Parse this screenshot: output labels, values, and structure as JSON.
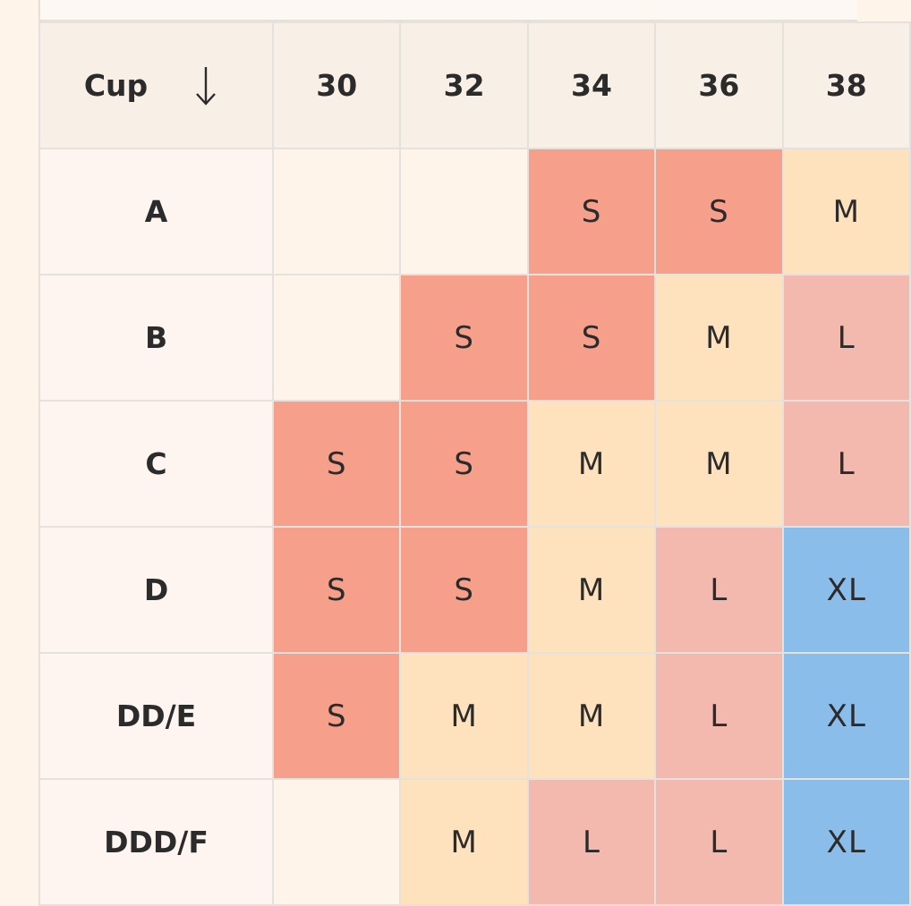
{
  "table": {
    "header": {
      "cup_label": "Cup",
      "sort_icon": "arrow-down-icon",
      "bands": [
        "30",
        "32",
        "34",
        "36",
        "38"
      ]
    },
    "rows": [
      {
        "cup": "A",
        "sizes": [
          "",
          "",
          "S",
          "S",
          "M"
        ]
      },
      {
        "cup": "B",
        "sizes": [
          "",
          "S",
          "S",
          "M",
          "L"
        ]
      },
      {
        "cup": "C",
        "sizes": [
          "S",
          "S",
          "M",
          "M",
          "L"
        ]
      },
      {
        "cup": "D",
        "sizes": [
          "S",
          "S",
          "M",
          "L",
          "XL"
        ]
      },
      {
        "cup": "DD/E",
        "sizes": [
          "S",
          "M",
          "M",
          "L",
          "XL"
        ]
      },
      {
        "cup": "DDD/F",
        "sizes": [
          "",
          "M",
          "L",
          "L",
          "XL"
        ]
      }
    ]
  },
  "colors": {
    "S": "#f6a08b",
    "M": "#fde2bd",
    "L": "#f4b9ae",
    "XL": "#8bbdea",
    "empty": "#fff4ea"
  }
}
